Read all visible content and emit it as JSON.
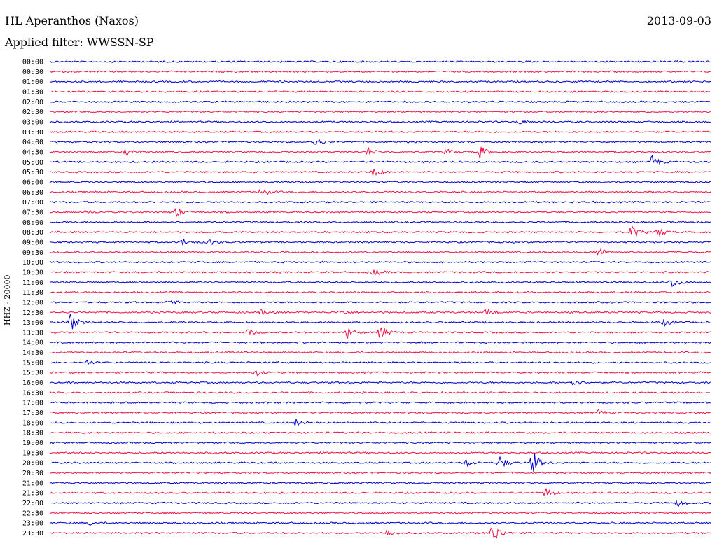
{
  "header": {
    "station": "HL Aperanthos (Naxos)",
    "date": "2013-09-03",
    "filter": "Applied filter: WWSSN-SP"
  },
  "chart_data": {
    "type": "line",
    "title": "HL Aperanthos (Naxos)",
    "subtitle": "Applied filter: WWSSN-SP",
    "date": "2013-09-03",
    "ylabel": "HHZ - 20000",
    "colors": {
      "even_rows": "#0000cc",
      "odd_rows": "#ee1144"
    },
    "rows": [
      {
        "time": "00:00",
        "events": []
      },
      {
        "time": "00:30",
        "events": []
      },
      {
        "time": "01:00",
        "events": []
      },
      {
        "time": "01:30",
        "events": []
      },
      {
        "time": "02:00",
        "events": []
      },
      {
        "time": "02:30",
        "events": []
      },
      {
        "time": "03:00",
        "events": [
          {
            "t": 0.71,
            "a": 3
          }
        ]
      },
      {
        "time": "03:30",
        "events": []
      },
      {
        "time": "04:00",
        "events": [
          {
            "t": 0.4,
            "a": 7
          }
        ]
      },
      {
        "time": "04:30",
        "events": [
          {
            "t": 0.115,
            "a": 6
          },
          {
            "t": 0.48,
            "a": 6
          },
          {
            "t": 0.6,
            "a": 4
          },
          {
            "t": 0.65,
            "a": 9
          }
        ]
      },
      {
        "time": "05:00",
        "events": [
          {
            "t": 0.91,
            "a": 9
          }
        ]
      },
      {
        "time": "05:30",
        "events": [
          {
            "t": 0.49,
            "a": 7
          }
        ]
      },
      {
        "time": "06:00",
        "events": []
      },
      {
        "time": "06:30",
        "events": [
          {
            "t": 0.32,
            "a": 6
          }
        ]
      },
      {
        "time": "07:00",
        "events": []
      },
      {
        "time": "07:30",
        "events": [
          {
            "t": 0.19,
            "a": 8
          },
          {
            "t": 0.055,
            "a": 3
          }
        ]
      },
      {
        "time": "08:00",
        "events": []
      },
      {
        "time": "08:30",
        "events": [
          {
            "t": 0.88,
            "a": 10
          },
          {
            "t": 0.92,
            "a": 7
          }
        ]
      },
      {
        "time": "09:00",
        "events": [
          {
            "t": 0.2,
            "a": 5
          },
          {
            "t": 0.24,
            "a": 4
          }
        ]
      },
      {
        "time": "09:30",
        "events": [
          {
            "t": 0.83,
            "a": 7
          }
        ]
      },
      {
        "time": "10:00",
        "events": []
      },
      {
        "time": "10:30",
        "events": [
          {
            "t": 0.49,
            "a": 5
          }
        ]
      },
      {
        "time": "11:00",
        "events": [
          {
            "t": 0.94,
            "a": 8
          }
        ]
      },
      {
        "time": "11:30",
        "events": []
      },
      {
        "time": "12:00",
        "events": [
          {
            "t": 0.18,
            "a": 5
          }
        ]
      },
      {
        "time": "12:30",
        "events": [
          {
            "t": 0.32,
            "a": 4
          },
          {
            "t": 0.44,
            "a": 4
          },
          {
            "t": 0.66,
            "a": 6
          }
        ]
      },
      {
        "time": "13:00",
        "events": [
          {
            "t": 0.03,
            "a": 14
          },
          {
            "t": 0.93,
            "a": 5
          }
        ]
      },
      {
        "time": "13:30",
        "events": [
          {
            "t": 0.3,
            "a": 5
          },
          {
            "t": 0.45,
            "a": 8
          },
          {
            "t": 0.5,
            "a": 11
          }
        ]
      },
      {
        "time": "14:00",
        "events": []
      },
      {
        "time": "14:30",
        "events": []
      },
      {
        "time": "15:00",
        "events": [
          {
            "t": 0.055,
            "a": 3
          }
        ]
      },
      {
        "time": "15:30",
        "events": [
          {
            "t": 0.31,
            "a": 5
          }
        ]
      },
      {
        "time": "16:00",
        "events": [
          {
            "t": 0.79,
            "a": 6
          }
        ]
      },
      {
        "time": "16:30",
        "events": []
      },
      {
        "time": "17:00",
        "events": []
      },
      {
        "time": "17:30",
        "events": [
          {
            "t": 0.83,
            "a": 4
          }
        ]
      },
      {
        "time": "18:00",
        "events": [
          {
            "t": 0.37,
            "a": 6
          }
        ]
      },
      {
        "time": "18:30",
        "events": []
      },
      {
        "time": "19:00",
        "events": []
      },
      {
        "time": "19:30",
        "events": []
      },
      {
        "time": "20:00",
        "events": [
          {
            "t": 0.63,
            "a": 5
          },
          {
            "t": 0.68,
            "a": 10
          },
          {
            "t": 0.73,
            "a": 18
          }
        ]
      },
      {
        "time": "20:30",
        "events": []
      },
      {
        "time": "21:00",
        "events": []
      },
      {
        "time": "21:30",
        "events": [
          {
            "t": 0.75,
            "a": 7
          }
        ]
      },
      {
        "time": "22:00",
        "events": [
          {
            "t": 0.95,
            "a": 5
          }
        ]
      },
      {
        "time": "22:30",
        "events": []
      },
      {
        "time": "23:00",
        "events": [
          {
            "t": 0.06,
            "a": 3
          }
        ]
      },
      {
        "time": "23:30",
        "events": [
          {
            "t": 0.51,
            "a": 6
          },
          {
            "t": 0.67,
            "a": 16
          }
        ]
      }
    ]
  }
}
